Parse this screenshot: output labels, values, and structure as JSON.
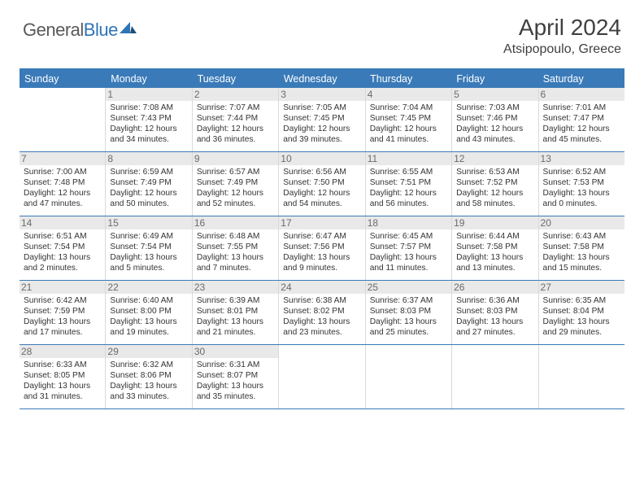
{
  "brand": {
    "word1": "General",
    "word2": "Blue"
  },
  "title": "April 2024",
  "location": "Atsipopoulo, Greece",
  "colors": {
    "accent": "#3a7ab8",
    "header_text": "#ffffff",
    "daynum_bg": "#e9e9e9"
  },
  "days_of_week": [
    "Sunday",
    "Monday",
    "Tuesday",
    "Wednesday",
    "Thursday",
    "Friday",
    "Saturday"
  ],
  "weeks": [
    [
      null,
      {
        "n": "1",
        "sunrise": "Sunrise: 7:08 AM",
        "sunset": "Sunset: 7:43 PM",
        "daylight": "Daylight: 12 hours and 34 minutes."
      },
      {
        "n": "2",
        "sunrise": "Sunrise: 7:07 AM",
        "sunset": "Sunset: 7:44 PM",
        "daylight": "Daylight: 12 hours and 36 minutes."
      },
      {
        "n": "3",
        "sunrise": "Sunrise: 7:05 AM",
        "sunset": "Sunset: 7:45 PM",
        "daylight": "Daylight: 12 hours and 39 minutes."
      },
      {
        "n": "4",
        "sunrise": "Sunrise: 7:04 AM",
        "sunset": "Sunset: 7:45 PM",
        "daylight": "Daylight: 12 hours and 41 minutes."
      },
      {
        "n": "5",
        "sunrise": "Sunrise: 7:03 AM",
        "sunset": "Sunset: 7:46 PM",
        "daylight": "Daylight: 12 hours and 43 minutes."
      },
      {
        "n": "6",
        "sunrise": "Sunrise: 7:01 AM",
        "sunset": "Sunset: 7:47 PM",
        "daylight": "Daylight: 12 hours and 45 minutes."
      }
    ],
    [
      {
        "n": "7",
        "sunrise": "Sunrise: 7:00 AM",
        "sunset": "Sunset: 7:48 PM",
        "daylight": "Daylight: 12 hours and 47 minutes."
      },
      {
        "n": "8",
        "sunrise": "Sunrise: 6:59 AM",
        "sunset": "Sunset: 7:49 PM",
        "daylight": "Daylight: 12 hours and 50 minutes."
      },
      {
        "n": "9",
        "sunrise": "Sunrise: 6:57 AM",
        "sunset": "Sunset: 7:49 PM",
        "daylight": "Daylight: 12 hours and 52 minutes."
      },
      {
        "n": "10",
        "sunrise": "Sunrise: 6:56 AM",
        "sunset": "Sunset: 7:50 PM",
        "daylight": "Daylight: 12 hours and 54 minutes."
      },
      {
        "n": "11",
        "sunrise": "Sunrise: 6:55 AM",
        "sunset": "Sunset: 7:51 PM",
        "daylight": "Daylight: 12 hours and 56 minutes."
      },
      {
        "n": "12",
        "sunrise": "Sunrise: 6:53 AM",
        "sunset": "Sunset: 7:52 PM",
        "daylight": "Daylight: 12 hours and 58 minutes."
      },
      {
        "n": "13",
        "sunrise": "Sunrise: 6:52 AM",
        "sunset": "Sunset: 7:53 PM",
        "daylight": "Daylight: 13 hours and 0 minutes."
      }
    ],
    [
      {
        "n": "14",
        "sunrise": "Sunrise: 6:51 AM",
        "sunset": "Sunset: 7:54 PM",
        "daylight": "Daylight: 13 hours and 2 minutes."
      },
      {
        "n": "15",
        "sunrise": "Sunrise: 6:49 AM",
        "sunset": "Sunset: 7:54 PM",
        "daylight": "Daylight: 13 hours and 5 minutes."
      },
      {
        "n": "16",
        "sunrise": "Sunrise: 6:48 AM",
        "sunset": "Sunset: 7:55 PM",
        "daylight": "Daylight: 13 hours and 7 minutes."
      },
      {
        "n": "17",
        "sunrise": "Sunrise: 6:47 AM",
        "sunset": "Sunset: 7:56 PM",
        "daylight": "Daylight: 13 hours and 9 minutes."
      },
      {
        "n": "18",
        "sunrise": "Sunrise: 6:45 AM",
        "sunset": "Sunset: 7:57 PM",
        "daylight": "Daylight: 13 hours and 11 minutes."
      },
      {
        "n": "19",
        "sunrise": "Sunrise: 6:44 AM",
        "sunset": "Sunset: 7:58 PM",
        "daylight": "Daylight: 13 hours and 13 minutes."
      },
      {
        "n": "20",
        "sunrise": "Sunrise: 6:43 AM",
        "sunset": "Sunset: 7:58 PM",
        "daylight": "Daylight: 13 hours and 15 minutes."
      }
    ],
    [
      {
        "n": "21",
        "sunrise": "Sunrise: 6:42 AM",
        "sunset": "Sunset: 7:59 PM",
        "daylight": "Daylight: 13 hours and 17 minutes."
      },
      {
        "n": "22",
        "sunrise": "Sunrise: 6:40 AM",
        "sunset": "Sunset: 8:00 PM",
        "daylight": "Daylight: 13 hours and 19 minutes."
      },
      {
        "n": "23",
        "sunrise": "Sunrise: 6:39 AM",
        "sunset": "Sunset: 8:01 PM",
        "daylight": "Daylight: 13 hours and 21 minutes."
      },
      {
        "n": "24",
        "sunrise": "Sunrise: 6:38 AM",
        "sunset": "Sunset: 8:02 PM",
        "daylight": "Daylight: 13 hours and 23 minutes."
      },
      {
        "n": "25",
        "sunrise": "Sunrise: 6:37 AM",
        "sunset": "Sunset: 8:03 PM",
        "daylight": "Daylight: 13 hours and 25 minutes."
      },
      {
        "n": "26",
        "sunrise": "Sunrise: 6:36 AM",
        "sunset": "Sunset: 8:03 PM",
        "daylight": "Daylight: 13 hours and 27 minutes."
      },
      {
        "n": "27",
        "sunrise": "Sunrise: 6:35 AM",
        "sunset": "Sunset: 8:04 PM",
        "daylight": "Daylight: 13 hours and 29 minutes."
      }
    ],
    [
      {
        "n": "28",
        "sunrise": "Sunrise: 6:33 AM",
        "sunset": "Sunset: 8:05 PM",
        "daylight": "Daylight: 13 hours and 31 minutes."
      },
      {
        "n": "29",
        "sunrise": "Sunrise: 6:32 AM",
        "sunset": "Sunset: 8:06 PM",
        "daylight": "Daylight: 13 hours and 33 minutes."
      },
      {
        "n": "30",
        "sunrise": "Sunrise: 6:31 AM",
        "sunset": "Sunset: 8:07 PM",
        "daylight": "Daylight: 13 hours and 35 minutes."
      },
      null,
      null,
      null,
      null
    ]
  ]
}
